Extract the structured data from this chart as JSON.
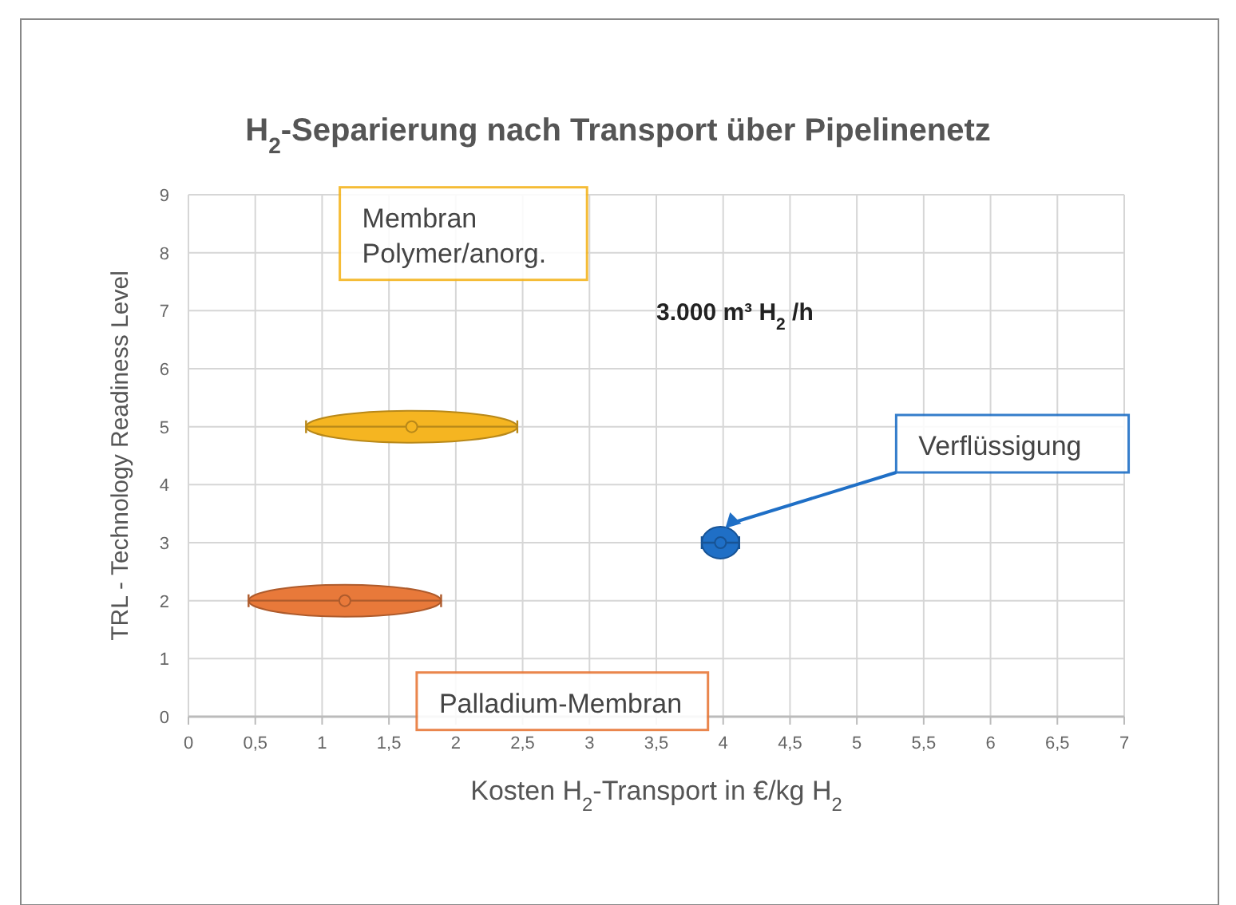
{
  "chart_data": {
    "type": "scatter",
    "title": "H$_{2}$-Separierung nach Transport über Pipelinenetz",
    "xlabel": "Kosten H$_{2}$-Transport in €/kg H$_{2}$",
    "ylabel": "TRL - Technology Readiness Level",
    "annotations": [
      "3.000 m³ H$_{2}$ /h"
    ],
    "xlim": [
      0,
      7
    ],
    "xticks": [
      0,
      {
        "value": 0.5,
        "label": "0,5"
      },
      1,
      {
        "value": 1.5,
        "label": "1,5"
      },
      2,
      {
        "value": 2.5,
        "label": "2,5"
      },
      3,
      {
        "value": 3.5,
        "label": "3,5"
      },
      4,
      {
        "value": 4.5,
        "label": "4,5"
      },
      5,
      {
        "value": 5.5,
        "label": "5,5"
      },
      6,
      {
        "value": 6.5,
        "label": "6,5"
      },
      7
    ],
    "ylim": [
      0,
      9
    ],
    "yticks": [
      0,
      1,
      2,
      3,
      4,
      5,
      6,
      7,
      8,
      9
    ],
    "grid": true,
    "legend": false,
    "series": [
      {
        "name": "Membran\nPolymer/anorg.",
        "color": "#f5b521",
        "x": [
          1.67
        ],
        "values": [
          5
        ],
        "xerrors": [
          [
            0.88,
            2.46
          ]
        ]
      },
      {
        "name": "Palladium-Membran",
        "color": "#e8793a",
        "x": [
          1.17
        ],
        "values": [
          2
        ],
        "xerrors": [
          [
            0.45,
            1.89
          ]
        ]
      },
      {
        "name": "Verflüssigung",
        "color": "#1f6fc6",
        "x": [
          3.98
        ],
        "values": [
          3
        ],
        "xerrors": [
          [
            3.84,
            4.12
          ]
        ]
      }
    ]
  }
}
